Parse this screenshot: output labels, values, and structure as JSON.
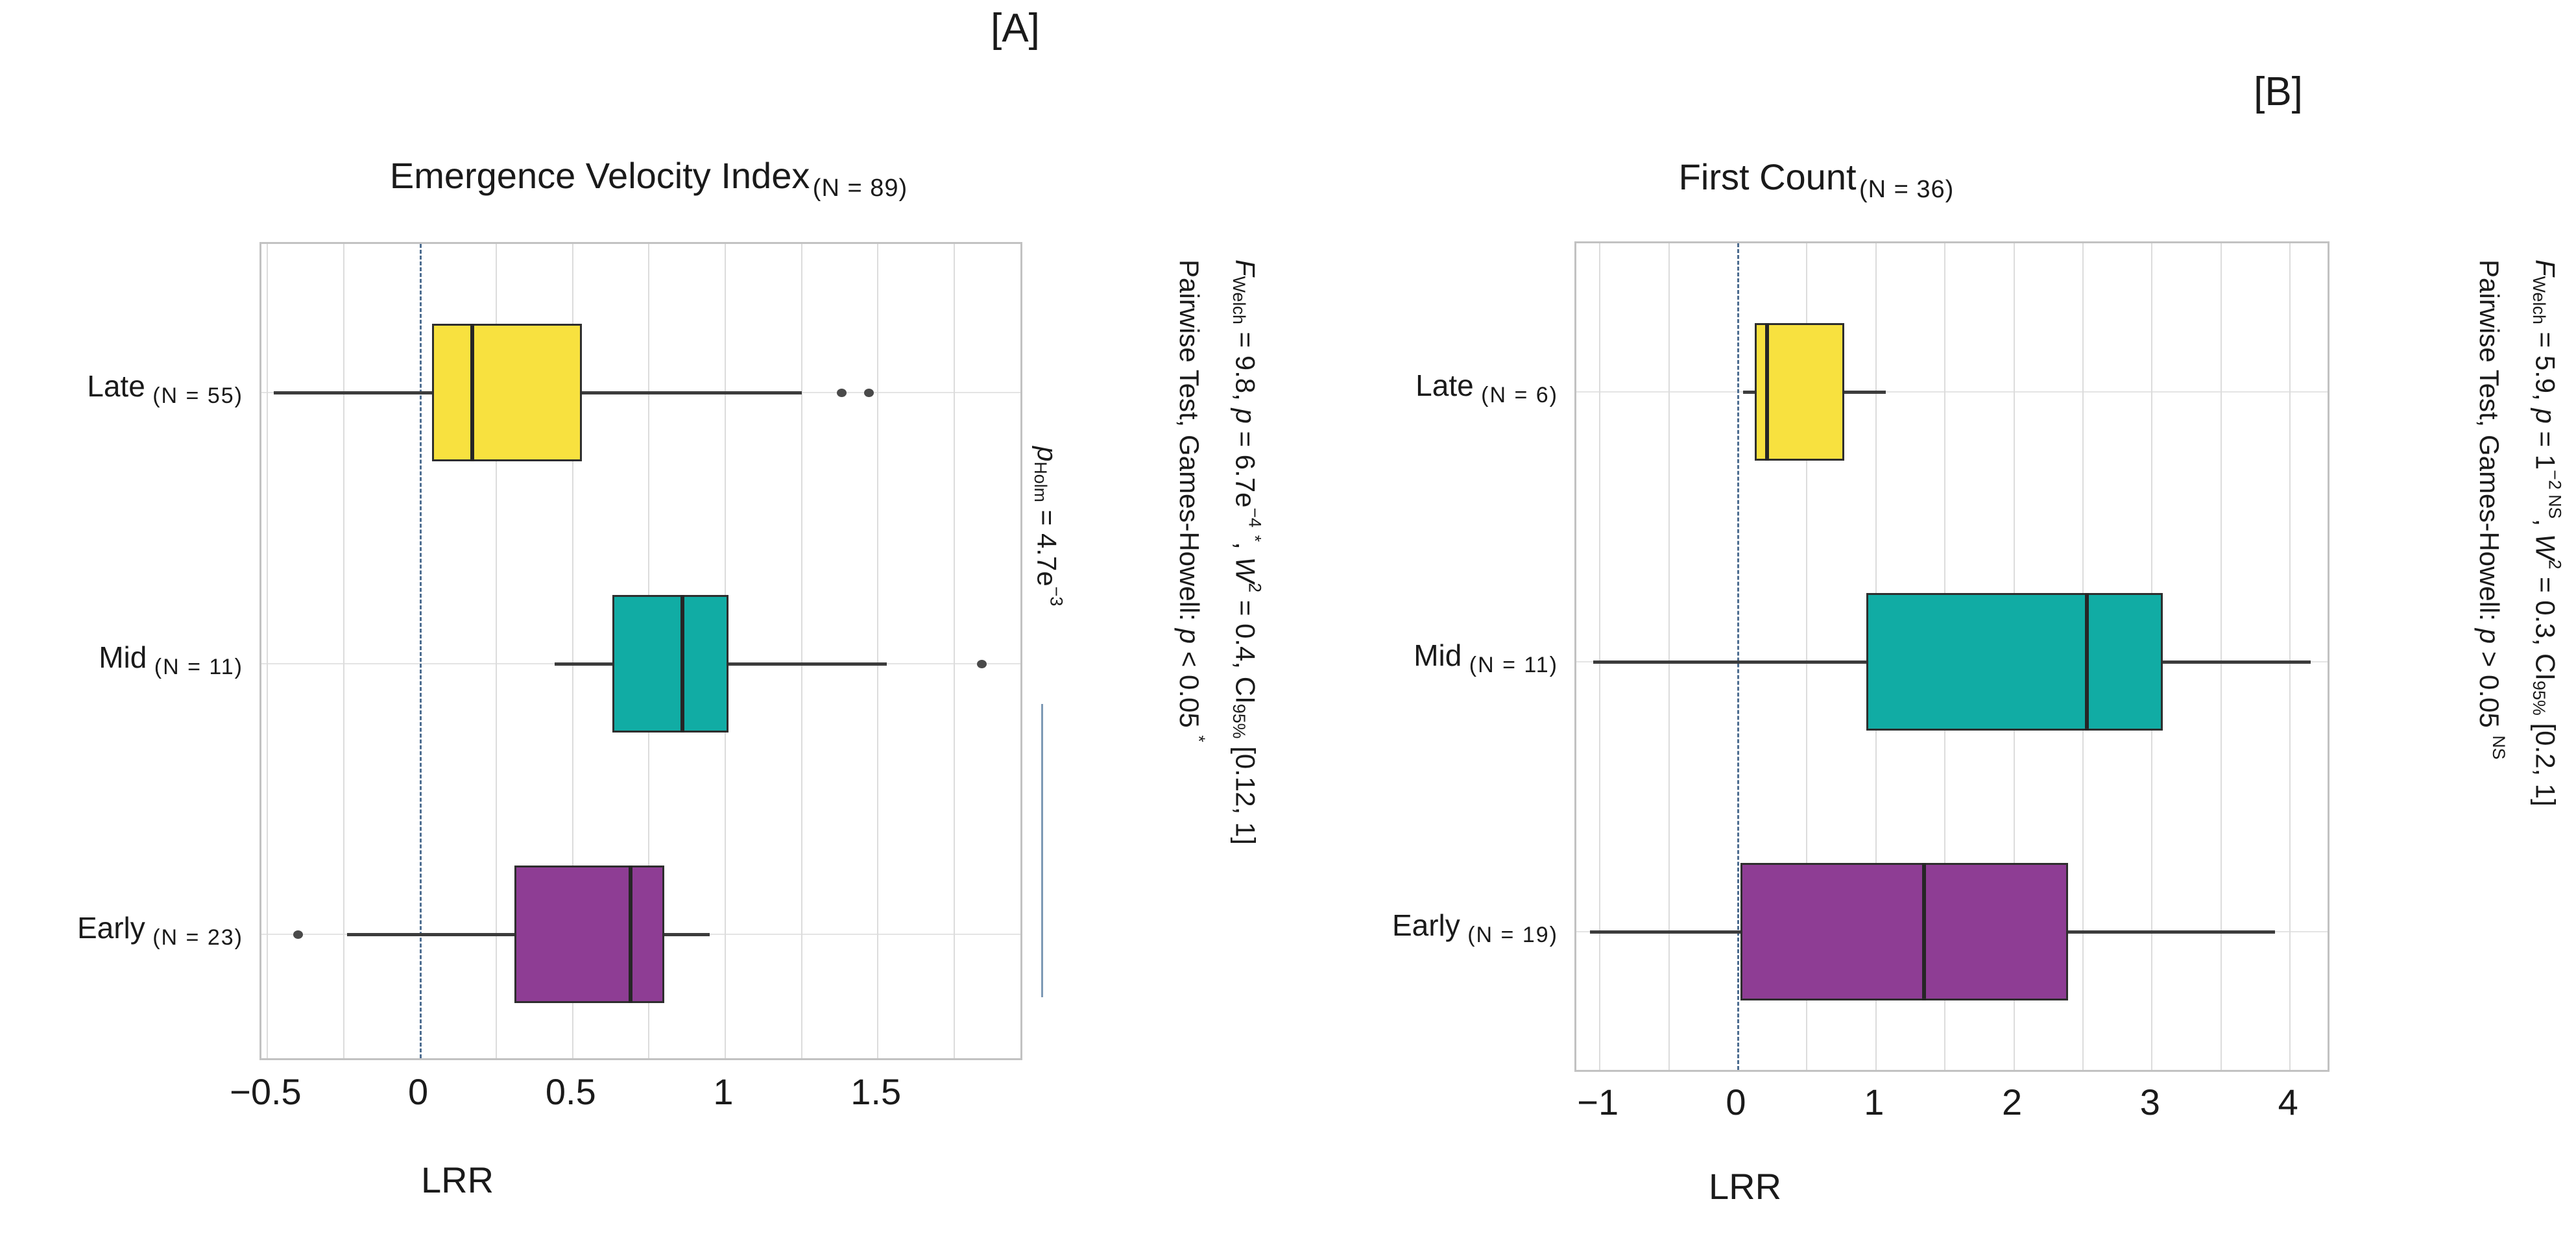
{
  "colors": {
    "box_yellow": "#F8E13F",
    "box_teal": "#11ACA4",
    "box_purple": "#8E3D94",
    "box_border": "#2E2E2E",
    "median": "#262626",
    "whisker": "#3C3C3C",
    "outlier": "#4A4A4A",
    "grid": "#DCDCDC",
    "row_grid": "#E4E4E4",
    "panel_border": "#C2C2C2",
    "zero_line": "#4D6D90",
    "bracket": "#7D99B5",
    "text": "#1A1A1A"
  },
  "chart_data": [
    {
      "type": "boxplot",
      "orientation": "horizontal",
      "corner_label": "[A]",
      "title": "Emergence Velocity Index",
      "title_n": "(N = 89)",
      "xlabel": "LRR",
      "x_axis": {
        "min": -0.52,
        "max": 1.98,
        "ticks": [
          -0.5,
          0,
          0.5,
          1,
          1.5
        ],
        "tick_labels": [
          "−0.5",
          "0",
          "0.5",
          "1",
          "1.5"
        ],
        "grid_step": 0.25,
        "zero_reference_line": 0,
        "grid": true
      },
      "groups": [
        {
          "label": "Late",
          "n_label": "(N = 55)",
          "color_key": "box_yellow",
          "whisker_low": -0.48,
          "q1": 0.04,
          "median": 0.17,
          "q3": 0.53,
          "whisker_high": 1.25,
          "outliers": [
            1.38,
            1.47
          ]
        },
        {
          "label": "Mid",
          "n_label": "(N = 11)",
          "color_key": "box_teal",
          "whisker_low": 0.44,
          "q1": 0.63,
          "median": 0.86,
          "q3": 1.01,
          "whisker_high": 1.53,
          "outliers": [
            1.84
          ]
        },
        {
          "label": "Early",
          "n_label": "(N = 23)",
          "color_key": "box_purple",
          "whisker_low": -0.24,
          "q1": 0.31,
          "median": 0.69,
          "q3": 0.8,
          "whisker_high": 0.95,
          "outliers": [
            -0.4
          ]
        }
      ],
      "stats_caption": {
        "line1": [
          {
            "t": "F",
            "s": "i"
          },
          {
            "t": "Welch",
            "s": "sub"
          },
          {
            "t": " = 9.8, ",
            "s": "n"
          },
          {
            "t": "p",
            "s": "i"
          },
          {
            "t": " = 6.7e",
            "s": "n"
          },
          {
            "t": "−4",
            "s": "sup"
          },
          {
            "t": " ",
            "s": "n"
          },
          {
            "t": "*",
            "s": "sup"
          },
          {
            "t": ", ",
            "s": "n"
          },
          {
            "t": "W",
            "s": "i"
          },
          {
            "t": "2",
            "s": "sup"
          },
          {
            "t": " = 0.4, CI",
            "s": "n"
          },
          {
            "t": "95%",
            "s": "sub"
          },
          {
            "t": " [0.12, 1]",
            "s": "n"
          }
        ],
        "line2": [
          {
            "t": "Pairwise Test, Games-Howell: ",
            "s": "n"
          },
          {
            "t": "p",
            "s": "i"
          },
          {
            "t": " < 0.05 ",
            "s": "n"
          },
          {
            "t": "*",
            "s": "sup"
          }
        ]
      },
      "pairwise_annotation": {
        "between": [
          "Mid",
          "Early"
        ],
        "segments": [
          {
            "t": "p",
            "s": "i"
          },
          {
            "t": "Holm",
            "s": "sub"
          },
          {
            "t": " = 4.7e",
            "s": "n"
          },
          {
            "t": "−3",
            "s": "sup"
          }
        ]
      }
    },
    {
      "type": "boxplot",
      "orientation": "horizontal",
      "corner_label": "[B]",
      "title": "First Count",
      "title_n": "(N = 36)",
      "xlabel": "LRR",
      "x_axis": {
        "min": -1.17,
        "max": 4.3,
        "ticks": [
          -1,
          0,
          1,
          2,
          3,
          4
        ],
        "tick_labels": [
          "−1",
          "0",
          "1",
          "2",
          "3",
          "4"
        ],
        "grid_step": 0.5,
        "zero_reference_line": 0,
        "grid": true
      },
      "groups": [
        {
          "label": "Late",
          "n_label": "(N = 6)",
          "color_key": "box_yellow",
          "whisker_low": 0.04,
          "q1": 0.12,
          "median": 0.21,
          "q3": 0.77,
          "whisker_high": 1.07,
          "outliers": []
        },
        {
          "label": "Mid",
          "n_label": "(N = 11)",
          "color_key": "box_teal",
          "whisker_low": -1.05,
          "q1": 0.93,
          "median": 2.53,
          "q3": 3.08,
          "whisker_high": 4.15,
          "outliers": []
        },
        {
          "label": "Early",
          "n_label": "(N = 19)",
          "color_key": "box_purple",
          "whisker_low": -1.07,
          "q1": 0.02,
          "median": 1.35,
          "q3": 2.39,
          "whisker_high": 3.89,
          "outliers": []
        }
      ],
      "stats_caption": {
        "line1": [
          {
            "t": "F",
            "s": "i"
          },
          {
            "t": "Welch",
            "s": "sub"
          },
          {
            "t": " = 5.9, ",
            "s": "n"
          },
          {
            "t": "p",
            "s": "i"
          },
          {
            "t": " = 1",
            "s": "n"
          },
          {
            "t": "−2 NS",
            "s": "sup"
          },
          {
            "t": ", ",
            "s": "n"
          },
          {
            "t": "W",
            "s": "i"
          },
          {
            "t": "2",
            "s": "sup"
          },
          {
            "t": " = 0.3, CI",
            "s": "n"
          },
          {
            "t": "95%",
            "s": "sub"
          },
          {
            "t": " [0.2, 1]",
            "s": "n"
          }
        ],
        "line2": [
          {
            "t": "Pairwise Test, Games-Howell: ",
            "s": "n"
          },
          {
            "t": "p",
            "s": "i"
          },
          {
            "t": " > 0.05 ",
            "s": "n"
          },
          {
            "t": "NS",
            "s": "sup"
          }
        ]
      },
      "pairwise_annotation": null
    }
  ]
}
